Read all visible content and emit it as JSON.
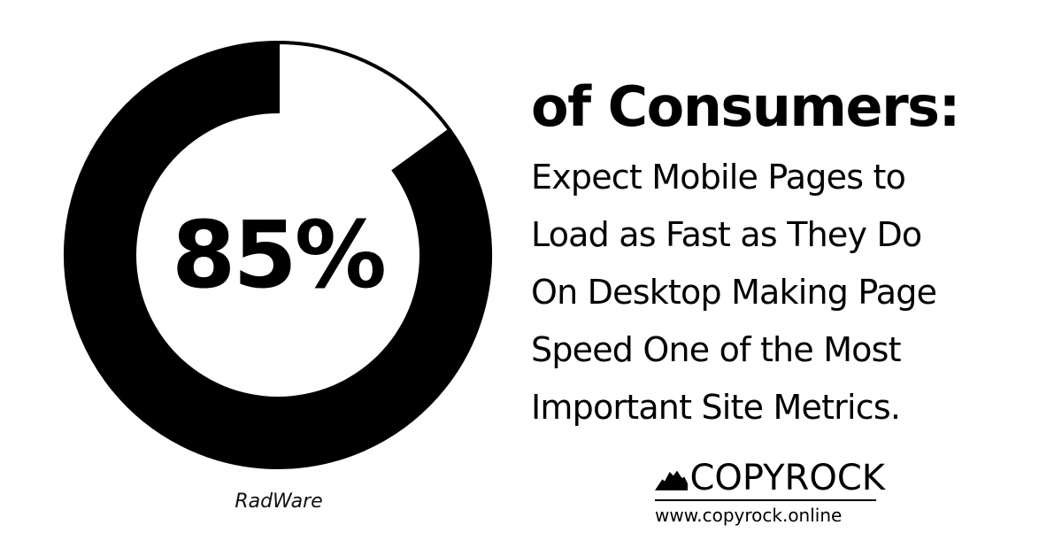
{
  "chart_data": {
    "type": "pie",
    "variant": "donut",
    "center_label": "85%",
    "slices": [
      {
        "value": 85,
        "color": "#000000"
      },
      {
        "value": 15,
        "color": "#ffffff"
      }
    ],
    "source": "RadWare"
  },
  "headline": "of Consumers:",
  "body_lines": [
    "Expect Mobile Pages to",
    "Load as Fast as They Do",
    "On Desktop Making Page",
    "Speed One of the Most",
    "Important Site Metrics."
  ],
  "brand": {
    "name": "COPYROCK",
    "url": "www.copyrock.online",
    "logo_icon": "mountain-icon"
  }
}
